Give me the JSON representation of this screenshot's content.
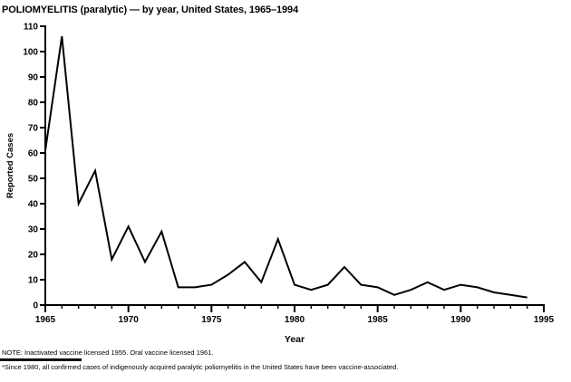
{
  "chart_data": {
    "type": "line",
    "title": "POLIOMYELITIS (paralytic) — by year, United States, 1965–1994",
    "xlabel": "Year",
    "ylabel": "Reported Cases",
    "x": [
      1965,
      1966,
      1967,
      1968,
      1969,
      1970,
      1971,
      1972,
      1973,
      1974,
      1975,
      1976,
      1977,
      1978,
      1979,
      1980,
      1981,
      1982,
      1983,
      1984,
      1985,
      1986,
      1987,
      1988,
      1989,
      1990,
      1991,
      1992,
      1993,
      1994
    ],
    "values": [
      61,
      106,
      40,
      53,
      18,
      31,
      17,
      29,
      7,
      7,
      8,
      12,
      17,
      9,
      26,
      8,
      6,
      8,
      15,
      8,
      7,
      4,
      6,
      9,
      6,
      8,
      7,
      5,
      4,
      3
    ],
    "xlim": [
      1965,
      1995
    ],
    "ylim": [
      0,
      110
    ],
    "x_ticks": [
      1965,
      1970,
      1975,
      1980,
      1985,
      1990,
      1995
    ],
    "y_ticks": [
      0,
      10,
      20,
      30,
      40,
      50,
      60,
      70,
      80,
      90,
      100,
      110
    ],
    "x_minor_tick_interval": 1,
    "grid": false,
    "legend": "none",
    "line_color": "#000000"
  },
  "footnotes": {
    "note": "NOTE: Inactivated vaccine licensed 1955. Oral vaccine licensed 1961.",
    "footnote": "*Since 1980, all confirmed cases of indigenously acquired paralytic poliomyelitis in the United States have been vaccine-associated."
  },
  "colors": {
    "background": "#ffffff",
    "foreground": "#000000"
  }
}
